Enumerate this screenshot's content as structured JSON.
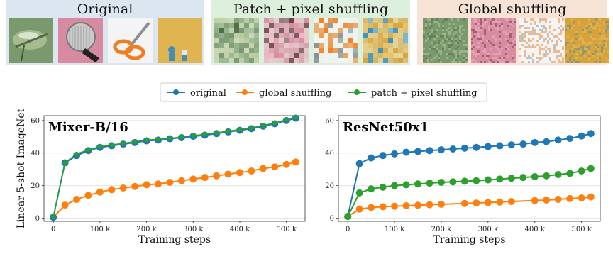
{
  "panels": [
    {
      "title": "Original",
      "bg": "#dbe6f1",
      "style": "photo"
    },
    {
      "title": "Patch + pixel shuffling",
      "bg": "#dcefdd",
      "style": "patch"
    },
    {
      "title": "Global shuffling",
      "bg": "#f6e3d6",
      "style": "noise"
    }
  ],
  "thumbnails": [
    {
      "name": "dragonfly",
      "colors": [
        "#7a9a6e",
        "#b9c99b",
        "#4f6b45"
      ]
    },
    {
      "name": "microphone",
      "colors": [
        "#d88aa0",
        "#e9b7c4",
        "#6b3a44"
      ]
    },
    {
      "name": "scissors",
      "colors": [
        "#f4f4f4",
        "#f07d1f",
        "#8a8f95"
      ]
    },
    {
      "name": "toy-figures",
      "colors": [
        "#d8a23a",
        "#e8c063",
        "#3f8fb8"
      ]
    }
  ],
  "legend": {
    "items": [
      {
        "label": "original",
        "color": "#1f77b4"
      },
      {
        "label": "global shuffling",
        "color": "#ff7f0e"
      },
      {
        "label": "patch + pixel shuffling",
        "color": "#2ca02c"
      }
    ]
  },
  "chart_data": [
    {
      "type": "line",
      "title": "Mixer-B/16",
      "xlabel": "Training steps",
      "ylabel": "Linear 5-shot ImageNet",
      "xlim": [
        -20000,
        540000
      ],
      "ylim": [
        -2,
        63
      ],
      "xticks": [
        0,
        100000,
        200000,
        300000,
        400000,
        500000
      ],
      "xtick_labels": [
        "0",
        "100 k",
        "200 k",
        "300 k",
        "400 k",
        "500 k"
      ],
      "yticks": [
        0,
        20,
        40,
        60
      ],
      "ytick_labels": [
        "0",
        "20",
        "40",
        "60"
      ],
      "grid": "horizontal",
      "x": [
        0,
        25000,
        50000,
        75000,
        100000,
        125000,
        150000,
        175000,
        200000,
        225000,
        250000,
        275000,
        300000,
        325000,
        350000,
        375000,
        400000,
        425000,
        450000,
        475000,
        500000,
        520000
      ],
      "series": [
        {
          "name": "original",
          "color": "#1f77b4",
          "values": [
            0.5,
            34,
            38.5,
            41.5,
            43.5,
            44.5,
            45.5,
            46.5,
            47.5,
            48,
            48.8,
            49.5,
            50.3,
            51,
            52,
            53,
            54,
            55,
            56.5,
            58,
            60,
            61.5
          ]
        },
        {
          "name": "global shuffling",
          "color": "#ff7f0e",
          "values": [
            0.5,
            8,
            11.5,
            14,
            16,
            17.5,
            18.5,
            19.5,
            20.5,
            21,
            22,
            23,
            24,
            25,
            26,
            27,
            28,
            29,
            30.5,
            31.5,
            33,
            34.5
          ]
        },
        {
          "name": "patch + pixel shuffling",
          "color": "#2ca02c",
          "values": [
            0.5,
            34,
            39.5,
            42,
            44,
            45,
            46,
            47,
            48,
            48.5,
            49,
            50,
            50.8,
            51.5,
            52.5,
            53.5,
            54.5,
            55.5,
            57,
            58.5,
            60.5,
            62
          ]
        }
      ]
    },
    {
      "type": "line",
      "title": "ResNet50x1",
      "xlabel": "Training steps",
      "ylabel": "",
      "xlim": [
        -20000,
        540000
      ],
      "ylim": [
        -2,
        63
      ],
      "xticks": [
        0,
        100000,
        200000,
        300000,
        400000,
        500000
      ],
      "xtick_labels": [
        "0",
        "100 k",
        "200 k",
        "300 k",
        "400 k",
        "500 k"
      ],
      "yticks": [
        0,
        20,
        40,
        60
      ],
      "ytick_labels": [
        "0",
        "20",
        "40",
        "60"
      ],
      "grid": "horizontal",
      "series": [
        {
          "name": "original",
          "color": "#1f77b4",
          "x": [
            0,
            25000,
            50000,
            75000,
            100000,
            125000,
            150000,
            175000,
            200000,
            225000,
            250000,
            275000,
            300000,
            325000,
            350000,
            375000,
            400000,
            425000,
            450000,
            475000,
            500000,
            520000
          ],
          "values": [
            1,
            33.5,
            37,
            38.5,
            39.5,
            40.5,
            41,
            41.5,
            42,
            42.5,
            43,
            43.5,
            44,
            44.5,
            45,
            45.5,
            46.5,
            47,
            48,
            49,
            50.5,
            52
          ]
        },
        {
          "name": "global shuffling",
          "color": "#ff7f0e",
          "x": [
            0,
            25000,
            50000,
            75000,
            100000,
            125000,
            150000,
            175000,
            200000,
            250000,
            275000,
            300000,
            325000,
            350000,
            400000,
            425000,
            450000,
            475000,
            500000,
            520000
          ],
          "values": [
            1,
            5.5,
            6.5,
            7,
            7.3,
            7.6,
            7.9,
            8.2,
            8.5,
            9,
            9.3,
            9.6,
            9.9,
            10.2,
            10.8,
            11.1,
            11.5,
            12,
            12.4,
            13
          ]
        },
        {
          "name": "patch + pixel shuffling",
          "color": "#2ca02c",
          "x": [
            0,
            25000,
            50000,
            75000,
            100000,
            125000,
            150000,
            175000,
            200000,
            225000,
            250000,
            275000,
            300000,
            325000,
            350000,
            375000,
            400000,
            425000,
            450000,
            475000,
            500000,
            520000
          ],
          "values": [
            1,
            15.5,
            18,
            19,
            20,
            20.5,
            21,
            21.5,
            22,
            22.3,
            22.7,
            23,
            23.5,
            24,
            24.5,
            25,
            25.5,
            26,
            26.8,
            27.5,
            29,
            30.5
          ]
        }
      ]
    }
  ]
}
